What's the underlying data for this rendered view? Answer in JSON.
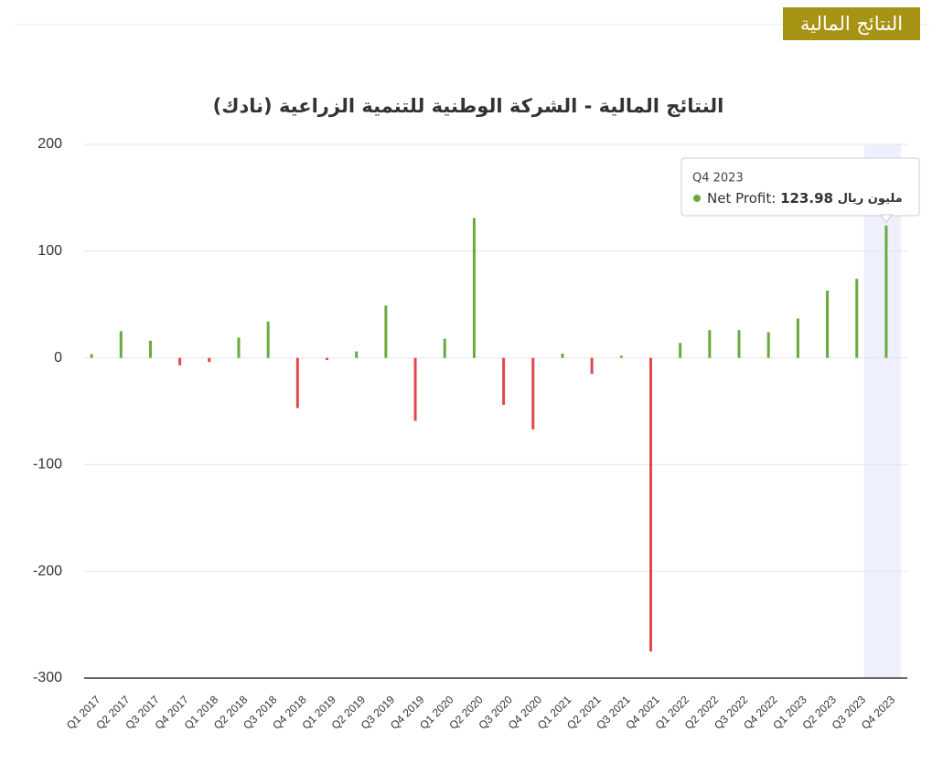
{
  "header": {
    "badge": "النتائج المالية"
  },
  "chart_data": {
    "type": "bar",
    "title": "النتائج المالية - الشركة الوطنية للتنمية الزراعية (نادك)",
    "categories": [
      "Q1 2017",
      "Q2 2017",
      "Q3 2017",
      "Q4 2017",
      "Q1 2018",
      "Q2 2018",
      "Q3 2018",
      "Q4 2018",
      "Q1 2019",
      "Q2 2019",
      "Q3 2019",
      "Q4 2019",
      "Q1 2020",
      "Q2 2020",
      "Q3 2020",
      "Q4 2020",
      "Q1 2021",
      "Q2 2021",
      "Q3 2021",
      "Q4 2021",
      "Q1 2022",
      "Q2 2022",
      "Q3 2022",
      "Q4 2022",
      "Q1 2023",
      "Q2 2023",
      "Q3 2023",
      "Q4 2023"
    ],
    "values": [
      3.5,
      25,
      16,
      -7,
      -4,
      19,
      34,
      -47,
      -2,
      6,
      49,
      -59,
      18,
      131,
      -44,
      -67,
      4,
      -15,
      2,
      -275,
      14,
      26,
      26,
      24,
      37,
      63,
      74,
      123.98
    ],
    "positive_color": "#6aaa3a",
    "negative_color": "#e0484e",
    "ylim": [
      -300,
      200
    ],
    "yticks": [
      -300,
      -200,
      -100,
      0,
      100,
      200
    ],
    "grid": true,
    "tooltip": {
      "label": "Net Profit:",
      "unit": "مليون ريال"
    }
  }
}
